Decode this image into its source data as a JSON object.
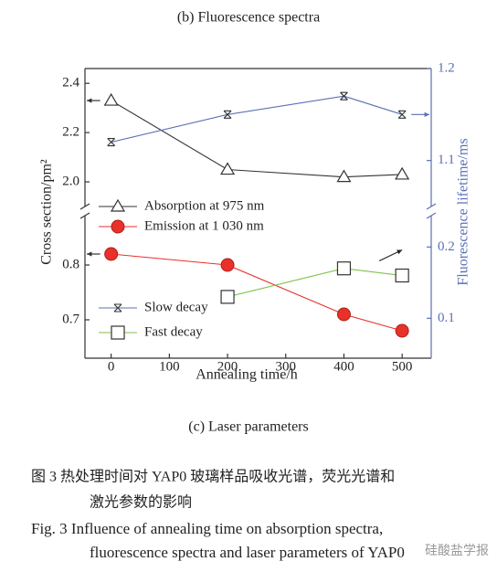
{
  "panel_b_caption": "(b) Fluorescence spectra",
  "panel_c_caption": "(c) Laser parameters",
  "figure_caption": {
    "zh_lines": [
      "图 3   热处理时间对 YAP0 玻璃样品吸收光谱，荧光光谱和",
      "激光参数的影响"
    ],
    "en_lines": [
      "Fig. 3   Influence of annealing time on absorption spectra,",
      "fluorescence spectra and laser parameters of YAP0"
    ]
  },
  "watermark": "硅酸盐学报",
  "chart_data": {
    "type": "line",
    "x_label": "Annealing time/h",
    "y_label": "Cross section/pm²",
    "y2_label": "Fluorescence lifetime/ms",
    "xlim": [
      -45,
      550
    ],
    "xticks": [
      0,
      100,
      200,
      300,
      400,
      500
    ],
    "segments": {
      "upper": {
        "ylim": [
          1.9,
          2.46
        ],
        "yticks": [
          {
            "value": 2,
            "label": "2.0"
          },
          2.2,
          2.4
        ],
        "y2lim": [
          1.05,
          1.2
        ],
        "y2ticks": [
          1.1,
          1.2
        ]
      },
      "lower": {
        "ylim": [
          0.63,
          0.89
        ],
        "yticks": [
          0.7,
          0.8
        ],
        "y2lim": [
          0.044,
          0.244
        ],
        "y2ticks": [
          0.1,
          0.2
        ]
      }
    },
    "series": [
      {
        "name": "Absorption at 975 nm",
        "color": "#333333",
        "marker": "triangle",
        "axis": "y",
        "segment": "upper",
        "x": [
          0,
          200,
          400,
          500
        ],
        "values": [
          2.33,
          2.05,
          2.02,
          2.03
        ]
      },
      {
        "name": "Emission at 1 030 nm",
        "color": "#e8312a",
        "marker": "circle",
        "axis": "y",
        "segment": "lower",
        "x": [
          0,
          200,
          400,
          500
        ],
        "values": [
          0.82,
          0.8,
          0.71,
          0.68
        ]
      },
      {
        "name": "Slow decay",
        "color": "#5b6fb5",
        "marker": "bowtie",
        "axis": "y2",
        "segment": "upper",
        "x": [
          0,
          200,
          400,
          500
        ],
        "values": [
          1.12,
          1.15,
          1.17,
          1.15
        ]
      },
      {
        "name": "Fast decay",
        "color": "#7fc24a",
        "marker": "square",
        "axis": "y2",
        "segment": "lower",
        "x": [
          200,
          400,
          500
        ],
        "values": [
          0.13,
          0.17,
          0.16
        ]
      }
    ]
  }
}
